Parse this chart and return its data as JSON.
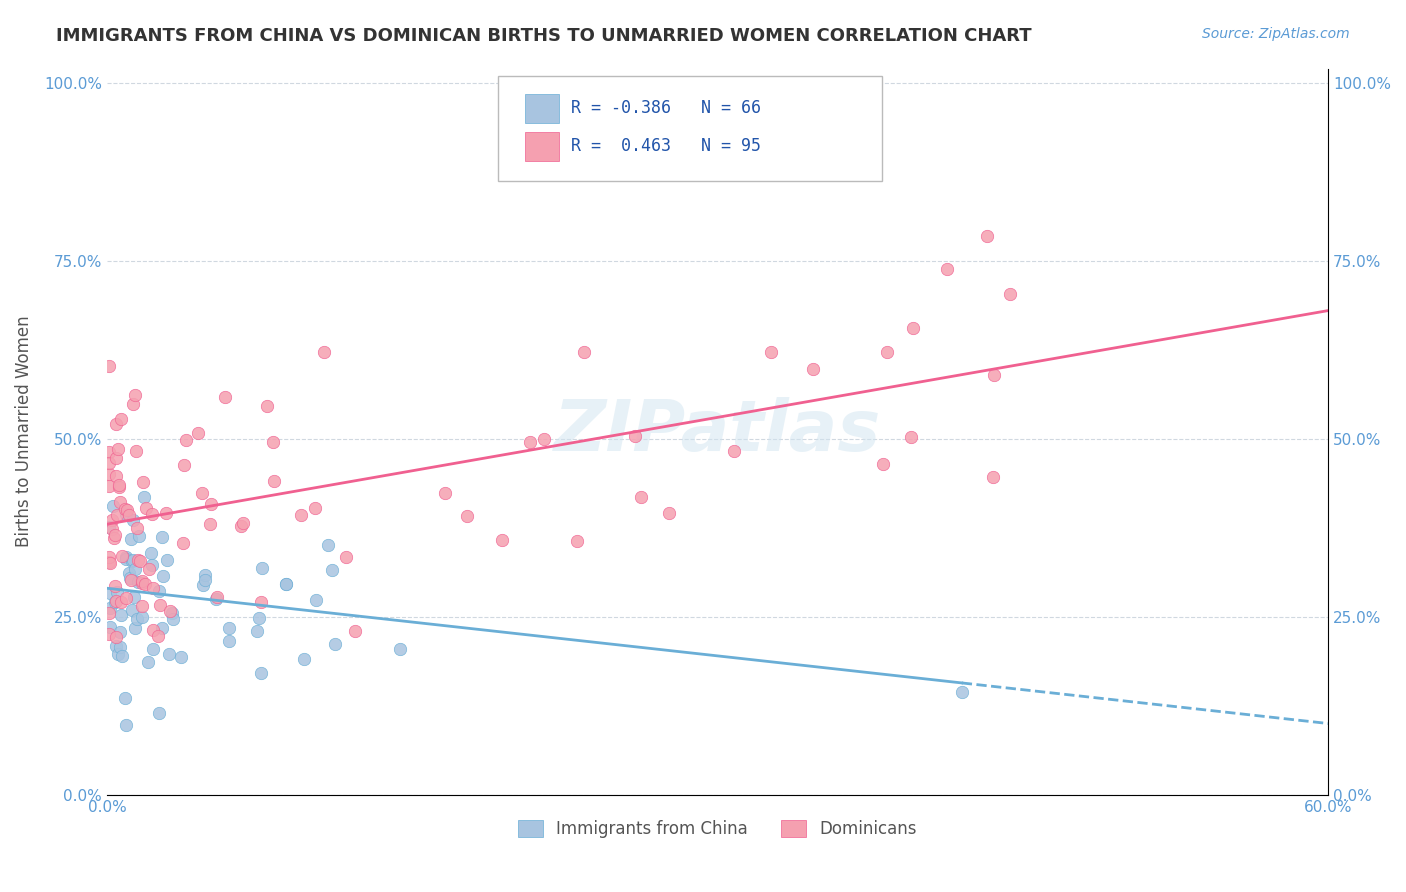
{
  "title": "IMMIGRANTS FROM CHINA VS DOMINICAN BIRTHS TO UNMARRIED WOMEN CORRELATION CHART",
  "source": "Source: ZipAtlas.com",
  "ylabel": "Births to Unmarried Women",
  "yticks": [
    "0.0%",
    "25.0%",
    "50.0%",
    "75.0%",
    "100.0%"
  ],
  "ytick_vals": [
    0.0,
    0.25,
    0.5,
    0.75,
    1.0
  ],
  "legend_label1": "Immigrants from China",
  "legend_label2": "Dominicans",
  "R1": -0.386,
  "N1": 66,
  "R2": 0.463,
  "N2": 95,
  "color_blue": "#a8c4e0",
  "color_pink": "#f5a0b0",
  "line_color_blue": "#6aaed6",
  "line_color_pink": "#f06090",
  "watermark": "ZIPatlas",
  "title_color": "#333333",
  "axis_label_color": "#5b9bd5",
  "xlim": [
    0.0,
    0.6
  ],
  "ylim": [
    0.0,
    1.02
  ],
  "blue_line_x0": 0.0,
  "blue_line_x1": 0.6,
  "blue_line_y0": 0.29,
  "blue_line_y1": 0.1,
  "pink_line_x0": 0.0,
  "pink_line_x1": 0.6,
  "pink_line_y0": 0.38,
  "pink_line_y1": 0.68
}
